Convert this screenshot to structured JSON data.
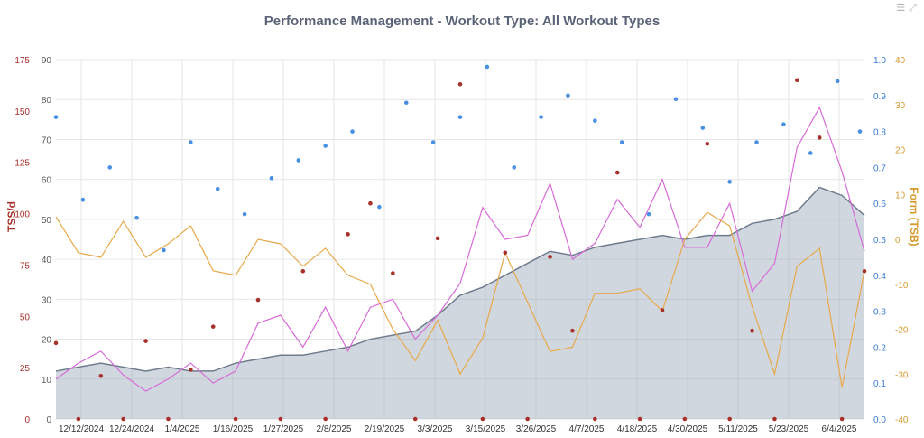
{
  "chart_data": {
    "type": "line",
    "title": "Performance Management - Workout Type: All Workout Types",
    "x_tick_labels": [
      "12/12/2024",
      "12/24/2024",
      "1/4/2025",
      "1/16/2025",
      "1/27/2025",
      "2/8/2025",
      "2/19/2025",
      "3/3/2025",
      "3/15/2025",
      "3/26/2025",
      "4/7/2025",
      "4/18/2025",
      "4/30/2025",
      "5/11/2025",
      "5/23/2025",
      "6/4/2025"
    ],
    "axes": {
      "tss_per_day": {
        "label": "TSS/d",
        "ticks": [
          "0",
          "25",
          "50",
          "75",
          "100",
          "125",
          "150",
          "175"
        ],
        "range": [
          0,
          175
        ],
        "color": "#a8302a"
      },
      "fitness": {
        "label": "",
        "ticks": [
          "0",
          "10",
          "20",
          "30",
          "40",
          "50",
          "60",
          "70",
          "80",
          "90"
        ],
        "range": [
          0,
          90
        ],
        "color": "#5a5a5a"
      },
      "intensity": {
        "label": "",
        "ticks": [
          "0.0",
          "0.1",
          "0.2",
          "0.3",
          "0.4",
          "0.5",
          "0.6",
          "0.7",
          "0.8",
          "0.9",
          "1.0"
        ],
        "range": [
          0,
          1.0
        ],
        "color": "#3a7bd5"
      },
      "form": {
        "label": "Form (TSB)",
        "ticks": [
          "-40",
          "-30",
          "-20",
          "-10",
          "0",
          "10",
          "20",
          "30",
          "40"
        ],
        "range": [
          -40,
          40
        ],
        "color": "#d59a2c"
      }
    },
    "grid": true,
    "legend": "none",
    "series": [
      {
        "axis": "fitness",
        "kind": "area",
        "color": "#9aa7b8",
        "x": [
          0,
          5,
          10,
          15,
          20,
          25,
          30,
          35,
          40,
          45,
          50,
          55,
          60,
          65,
          70,
          75,
          80,
          85,
          90,
          95,
          100,
          105,
          110,
          115,
          120,
          125,
          130,
          135,
          140,
          145,
          150,
          155,
          160,
          165,
          170,
          175,
          180
        ],
        "values": [
          12,
          13,
          14,
          13,
          12,
          13,
          12,
          12,
          14,
          15,
          16,
          16,
          17,
          18,
          20,
          21,
          22,
          26,
          31,
          33,
          36,
          39,
          42,
          41,
          43,
          44,
          45,
          46,
          45,
          46,
          46,
          49,
          50,
          52,
          58,
          56,
          51
        ]
      },
      {
        "axis": "fitness",
        "kind": "line",
        "color": "#d76bd8",
        "x": [
          0,
          5,
          10,
          15,
          20,
          25,
          30,
          35,
          40,
          45,
          50,
          55,
          60,
          65,
          70,
          75,
          80,
          85,
          90,
          95,
          100,
          105,
          110,
          115,
          120,
          125,
          130,
          135,
          140,
          145,
          150,
          155,
          160,
          165,
          170,
          175,
          180
        ],
        "values": [
          10,
          14,
          17,
          11,
          7,
          10,
          14,
          9,
          12,
          24,
          26,
          18,
          28,
          17,
          28,
          30,
          20,
          26,
          34,
          53,
          45,
          46,
          59,
          40,
          44,
          55,
          48,
          60,
          43,
          43,
          54,
          32,
          39,
          68,
          78,
          62,
          42
        ]
      },
      {
        "axis": "form",
        "kind": "line",
        "color": "#e8a94a",
        "x": [
          0,
          5,
          10,
          15,
          20,
          25,
          30,
          35,
          40,
          45,
          50,
          55,
          60,
          65,
          70,
          75,
          80,
          85,
          90,
          95,
          100,
          105,
          110,
          115,
          120,
          125,
          130,
          135,
          140,
          145,
          150,
          155,
          160,
          165,
          170,
          175,
          180
        ],
        "values": [
          5,
          -3,
          -4,
          4,
          -4,
          -1,
          3,
          -7,
          -8,
          0,
          -1,
          -6,
          -2,
          -8,
          -10,
          -20,
          -27,
          -18,
          -30,
          -22,
          -3,
          -14,
          -25,
          -24,
          -12,
          -12,
          -11,
          -16,
          0,
          6,
          3,
          -15,
          -30,
          -6,
          -2,
          -33,
          -7
        ]
      },
      {
        "axis": "intensity",
        "kind": "scatter",
        "color": "#4a90e2",
        "x": [
          0,
          6,
          12,
          18,
          24,
          30,
          36,
          42,
          48,
          54,
          60,
          66,
          72,
          78,
          84,
          90,
          96,
          102,
          108,
          114,
          120,
          126,
          132,
          138,
          144,
          150,
          156,
          162,
          168,
          174,
          179
        ],
        "values": [
          0.84,
          0.61,
          0.7,
          0.56,
          0.47,
          0.77,
          0.64,
          0.57,
          0.67,
          0.72,
          0.76,
          0.8,
          0.59,
          0.88,
          0.77,
          0.84,
          0.98,
          0.7,
          0.84,
          0.9,
          0.83,
          0.77,
          0.57,
          0.89,
          0.81,
          0.66,
          0.77,
          0.82,
          0.74,
          0.94,
          0.8
        ]
      },
      {
        "axis": "tss_per_day",
        "kind": "scatter",
        "color": "#a8302a",
        "x": [
          0,
          5,
          10,
          15,
          20,
          25,
          30,
          35,
          40,
          45,
          50,
          55,
          60,
          65,
          70,
          75,
          80,
          85,
          90,
          95,
          100,
          105,
          110,
          115,
          120,
          125,
          130,
          135,
          140,
          145,
          150,
          155,
          160,
          165,
          170,
          175,
          180
        ],
        "values": [
          37,
          0,
          21,
          0,
          38,
          0,
          24,
          45,
          0,
          58,
          0,
          72,
          0,
          90,
          105,
          71,
          0,
          88,
          163,
          0,
          81,
          0,
          79,
          43,
          0,
          120,
          0,
          53,
          0,
          134,
          0,
          43,
          0,
          165,
          137,
          0,
          72
        ]
      }
    ]
  }
}
